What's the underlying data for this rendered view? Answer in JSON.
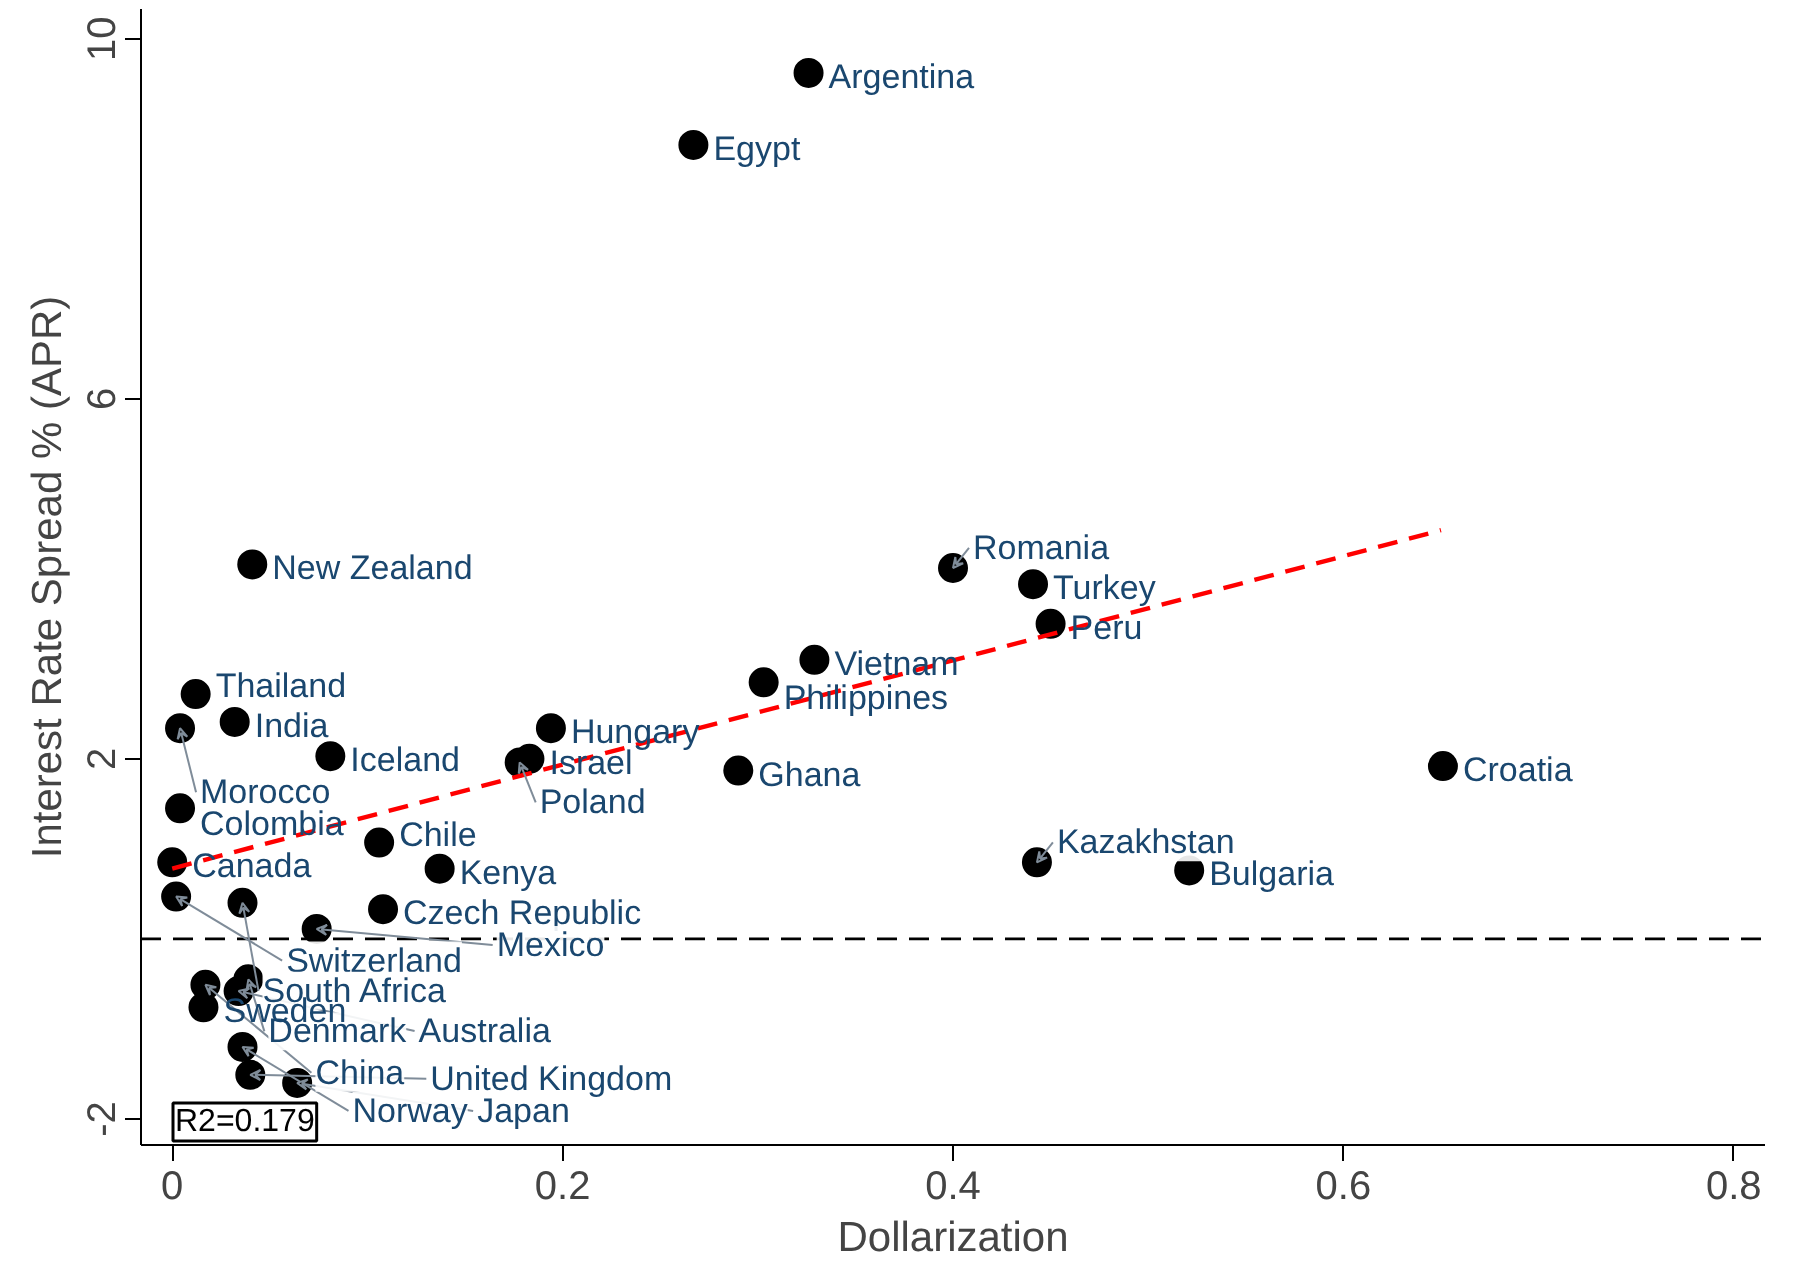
{
  "chart_data": {
    "type": "scatter",
    "xlabel": "Dollarization",
    "ylabel": "Interest Rate Spread % (APR)",
    "xlim": [
      -0.016,
      0.816
    ],
    "ylim": [
      -2.29,
      10.33
    ],
    "xticks": [
      0,
      0.2,
      0.4,
      0.6,
      0.8
    ],
    "yticks": [
      -2,
      2,
      6,
      10
    ],
    "grid": false,
    "series": [
      {
        "color": "#000000",
        "x": [
          0.326,
          0.267,
          0.041,
          0.4,
          0.441,
          0.45,
          0.329,
          0.303,
          0.012,
          0.032,
          0.004,
          0.194,
          0.081,
          0.183,
          0.178,
          0.29,
          0.651,
          0.004,
          0.106,
          0.0,
          0.137,
          0.443,
          0.521,
          0.002,
          0.036,
          0.108,
          0.074,
          0.039,
          0.017,
          0.034,
          0.016,
          0.036,
          0.04,
          0.064
        ],
        "values": [
          9.62,
          8.82,
          4.16,
          4.12,
          3.94,
          3.5,
          3.1,
          2.85,
          2.72,
          2.41,
          2.34,
          2.34,
          2.03,
          2.0,
          1.96,
          1.87,
          1.92,
          1.45,
          1.07,
          0.85,
          0.78,
          0.85,
          0.76,
          0.47,
          0.4,
          0.33,
          0.11,
          -0.45,
          -0.51,
          -0.58,
          -0.76,
          -1.2,
          -1.51,
          -1.6
        ]
      },
      {
        "type": "line",
        "color": "#ff0000",
        "line_style": "dashed",
        "x": [
          0.0,
          0.65
        ],
        "values": [
          0.78,
          4.54
        ]
      }
    ],
    "ref_lines": [
      {
        "axis": "y",
        "value": 0,
        "color": "#000000",
        "line_style": "dashed"
      }
    ],
    "annotations": [
      {
        "text": "Argentina",
        "x": 0.326,
        "y": 9.62
      },
      {
        "text": "Egypt",
        "x": 0.267,
        "y": 8.82
      },
      {
        "text": "New Zealand",
        "x": 0.041,
        "y": 4.16
      },
      {
        "text": "Romania",
        "x": 0.4,
        "y": 4.12
      },
      {
        "text": "Turkey",
        "x": 0.441,
        "y": 3.94
      },
      {
        "text": "Peru",
        "x": 0.45,
        "y": 3.5
      },
      {
        "text": "Vietnam",
        "x": 0.329,
        "y": 3.1
      },
      {
        "text": "Philippines",
        "x": 0.303,
        "y": 2.85
      },
      {
        "text": "Thailand",
        "x": 0.012,
        "y": 2.72
      },
      {
        "text": "India",
        "x": 0.032,
        "y": 2.41
      },
      {
        "text": "Morocco",
        "x": 0.004,
        "y": 2.34
      },
      {
        "text": "Hungary",
        "x": 0.194,
        "y": 2.34
      },
      {
        "text": "Iceland",
        "x": 0.081,
        "y": 2.03
      },
      {
        "text": "Israel",
        "x": 0.183,
        "y": 2.0
      },
      {
        "text": "Poland",
        "x": 0.178,
        "y": 1.96
      },
      {
        "text": "Ghana",
        "x": 0.29,
        "y": 1.87
      },
      {
        "text": "Croatia",
        "x": 0.651,
        "y": 1.92
      },
      {
        "text": "Colombia",
        "x": 0.004,
        "y": 1.45
      },
      {
        "text": "Chile",
        "x": 0.106,
        "y": 1.07
      },
      {
        "text": "Canada",
        "x": 0.0,
        "y": 0.85
      },
      {
        "text": "Kenya",
        "x": 0.137,
        "y": 0.78
      },
      {
        "text": "Kazakhstan",
        "x": 0.443,
        "y": 0.85
      },
      {
        "text": "Bulgaria",
        "x": 0.521,
        "y": 0.76
      },
      {
        "text": "Switzerland",
        "x": 0.002,
        "y": 0.47
      },
      {
        "text": "South Africa",
        "x": 0.036,
        "y": 0.4
      },
      {
        "text": "Czech Republic",
        "x": 0.108,
        "y": 0.33
      },
      {
        "text": "Mexico",
        "x": 0.074,
        "y": 0.11
      },
      {
        "text": "Denmark",
        "x": 0.039,
        "y": -0.45
      },
      {
        "text": "China",
        "x": 0.017,
        "y": -0.51
      },
      {
        "text": "Australia",
        "x": 0.034,
        "y": -0.58
      },
      {
        "text": "Sweden",
        "x": 0.016,
        "y": -0.76
      },
      {
        "text": "Norway",
        "x": 0.036,
        "y": -1.2
      },
      {
        "text": "United Kingdom",
        "x": 0.04,
        "y": -1.51
      },
      {
        "text": "Japan",
        "x": 0.064,
        "y": -1.6
      },
      "R2=0.179"
    ]
  }
}
